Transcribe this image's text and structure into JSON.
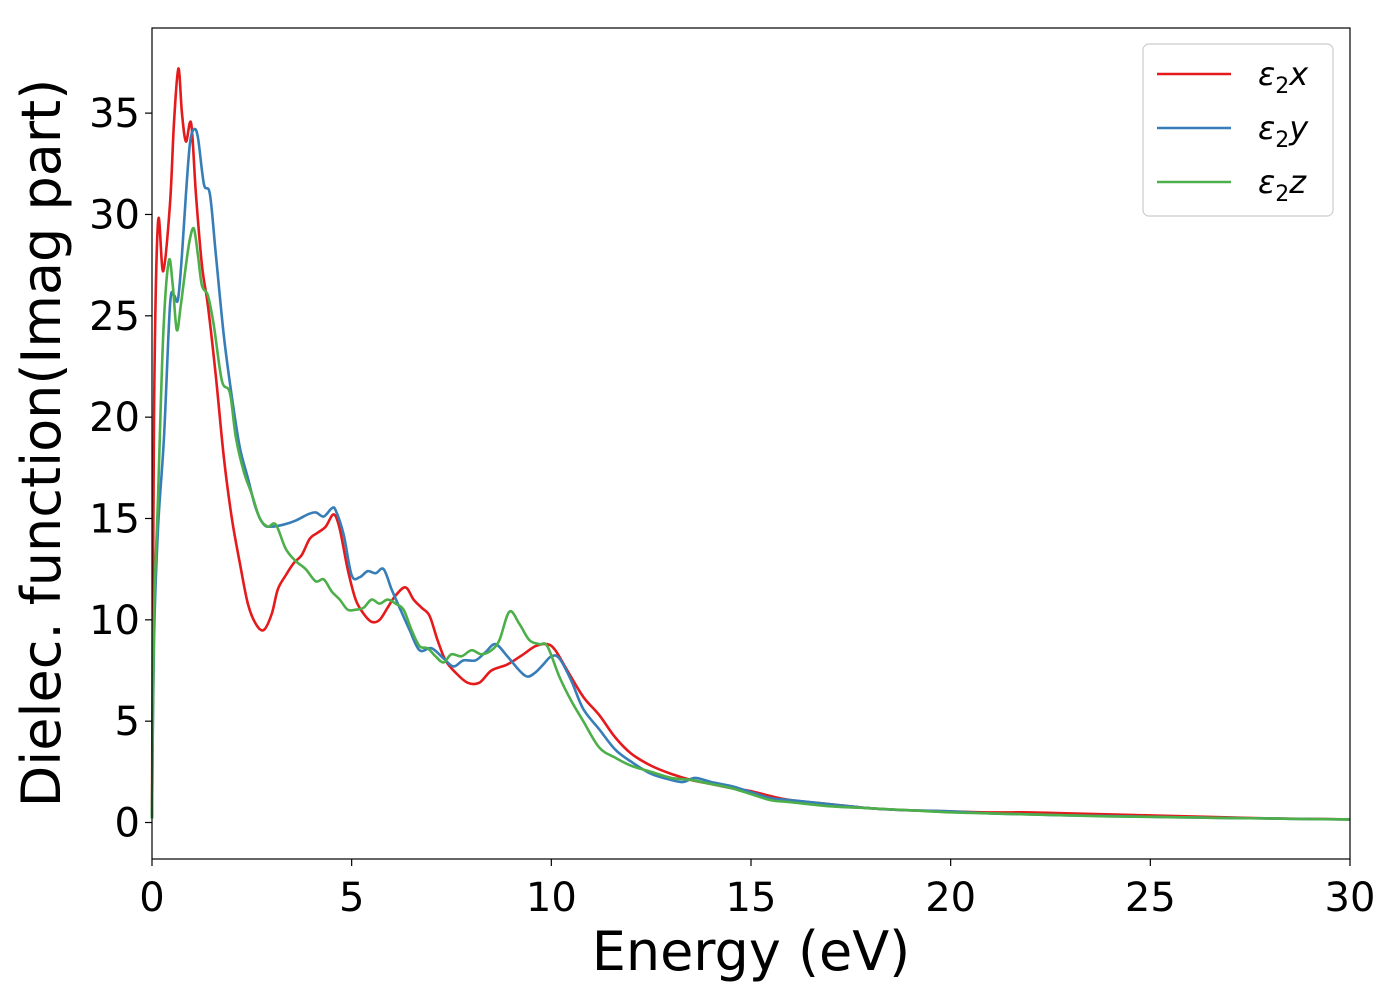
{
  "chart_data": {
    "type": "line",
    "title": "",
    "xlabel": "Energy (eV)",
    "ylabel": "Dielec. function(Imag part)",
    "xlim": [
      0,
      30
    ],
    "ylim": [
      -1.8,
      39.2
    ],
    "xticks": [
      0,
      5,
      10,
      15,
      20,
      25,
      30
    ],
    "yticks": [
      0,
      5,
      10,
      15,
      20,
      25,
      30,
      35
    ],
    "grid": false,
    "legend_position": "top-right",
    "series": [
      {
        "name": "ε₂x",
        "legend_main": "ε",
        "legend_sub": "2",
        "legend_tail": "x",
        "color": "#e41a1c",
        "x": [
          0,
          0.05,
          0.15,
          0.28,
          0.45,
          0.55,
          0.66,
          0.75,
          0.85,
          0.98,
          1.1,
          1.25,
          1.4,
          1.6,
          1.8,
          2.0,
          2.2,
          2.4,
          2.6,
          2.8,
          3.0,
          3.15,
          3.35,
          3.55,
          3.75,
          3.95,
          4.15,
          4.35,
          4.55,
          4.7,
          4.9,
          5.1,
          5.3,
          5.5,
          5.7,
          5.9,
          6.1,
          6.35,
          6.55,
          6.75,
          6.95,
          7.15,
          7.35,
          7.6,
          7.9,
          8.2,
          8.5,
          8.9,
          9.3,
          9.6,
          9.9,
          10.1,
          10.4,
          10.8,
          11.2,
          11.6,
          12.0,
          12.5,
          13.0,
          13.5,
          14.0,
          14.5,
          15.0,
          15.5,
          16.0,
          17.0,
          18.0,
          19.0,
          20.0,
          21.0,
          22.0,
          23.0,
          24.0,
          25.0,
          26.0,
          27.0,
          28.0,
          29.0,
          30.0
        ],
        "values": [
          0.3,
          20,
          29.6,
          27.2,
          30.5,
          34.5,
          37.2,
          35.0,
          33.6,
          34.5,
          31.0,
          27.5,
          25.5,
          22.0,
          18.0,
          15.0,
          12.8,
          10.8,
          9.8,
          9.5,
          10.3,
          11.5,
          12.2,
          12.8,
          13.2,
          14.0,
          14.3,
          14.6,
          15.2,
          14.5,
          12.5,
          11.0,
          10.3,
          9.9,
          10.0,
          10.6,
          11.2,
          11.6,
          11.0,
          10.6,
          10.2,
          9.0,
          8.0,
          7.4,
          6.9,
          6.9,
          7.5,
          7.8,
          8.3,
          8.7,
          8.8,
          8.5,
          7.5,
          6.2,
          5.3,
          4.2,
          3.4,
          2.8,
          2.4,
          2.1,
          1.9,
          1.7,
          1.55,
          1.3,
          1.1,
          0.9,
          0.7,
          0.6,
          0.55,
          0.5,
          0.5,
          0.45,
          0.4,
          0.35,
          0.3,
          0.25,
          0.2,
          0.18,
          0.15
        ]
      },
      {
        "name": "ε₂y",
        "legend_main": "ε",
        "legend_sub": "2",
        "legend_tail": "y",
        "color": "#377eb8",
        "x": [
          0,
          0.05,
          0.15,
          0.3,
          0.45,
          0.55,
          0.65,
          0.75,
          0.85,
          0.95,
          1.05,
          1.15,
          1.3,
          1.45,
          1.6,
          1.8,
          2.0,
          2.2,
          2.4,
          2.6,
          2.8,
          3.0,
          3.3,
          3.6,
          3.9,
          4.1,
          4.3,
          4.5,
          4.6,
          4.8,
          5.0,
          5.2,
          5.4,
          5.6,
          5.8,
          6.0,
          6.2,
          6.45,
          6.7,
          7.0,
          7.3,
          7.55,
          7.8,
          8.1,
          8.35,
          8.6,
          8.9,
          9.2,
          9.4,
          9.6,
          9.8,
          10.0,
          10.2,
          10.5,
          10.8,
          11.2,
          11.6,
          12.0,
          12.5,
          13.0,
          13.3,
          13.6,
          14.0,
          14.5,
          15.0,
          15.5,
          16.0,
          17.0,
          18.0,
          19.0,
          20.0,
          21.0,
          22.0,
          23.0,
          24.0,
          25.0,
          26.0,
          27.0,
          28.0,
          29.0,
          30.0
        ],
        "values": [
          0.2,
          9.0,
          14.5,
          19.0,
          25.5,
          26.0,
          25.8,
          28.0,
          31.0,
          33.5,
          34.2,
          33.8,
          31.5,
          31.0,
          28.0,
          24.0,
          21.0,
          18.5,
          17.0,
          15.5,
          14.7,
          14.6,
          14.7,
          14.9,
          15.2,
          15.3,
          15.1,
          15.5,
          15.4,
          14.2,
          12.2,
          12.1,
          12.4,
          12.3,
          12.5,
          11.5,
          10.6,
          9.5,
          8.5,
          8.6,
          8.1,
          7.7,
          8.0,
          8.0,
          8.4,
          8.8,
          8.2,
          7.5,
          7.2,
          7.4,
          7.8,
          8.2,
          8.1,
          7.0,
          5.6,
          4.6,
          3.6,
          3.0,
          2.4,
          2.1,
          2.0,
          2.2,
          2.0,
          1.8,
          1.5,
          1.2,
          1.1,
          0.9,
          0.7,
          0.6,
          0.55,
          0.45,
          0.4,
          0.35,
          0.32,
          0.28,
          0.25,
          0.22,
          0.2,
          0.17,
          0.15
        ]
      },
      {
        "name": "ε₂z",
        "legend_main": "ε",
        "legend_sub": "2",
        "legend_tail": "z",
        "color": "#4daf4a",
        "x": [
          0,
          0.05,
          0.15,
          0.28,
          0.42,
          0.52,
          0.62,
          0.72,
          0.85,
          0.95,
          1.05,
          1.15,
          1.25,
          1.4,
          1.55,
          1.75,
          1.95,
          2.1,
          2.3,
          2.5,
          2.7,
          2.9,
          3.1,
          3.35,
          3.6,
          3.85,
          4.1,
          4.3,
          4.5,
          4.7,
          4.9,
          5.1,
          5.3,
          5.5,
          5.7,
          5.9,
          6.1,
          6.3,
          6.5,
          6.7,
          6.9,
          7.1,
          7.3,
          7.5,
          7.75,
          8.0,
          8.25,
          8.5,
          8.7,
          8.95,
          9.2,
          9.45,
          9.7,
          9.9,
          10.2,
          10.5,
          10.8,
          11.2,
          11.6,
          12.0,
          12.5,
          13.0,
          13.5,
          14.0,
          14.5,
          15.0,
          15.5,
          16.0,
          17.0,
          18.0,
          19.0,
          20.0,
          21.0,
          22.0,
          23.0,
          24.0,
          25.0,
          26.0,
          27.0,
          28.0,
          29.0,
          30.0
        ],
        "values": [
          0.2,
          10.0,
          16.0,
          24.0,
          27.7,
          26.5,
          24.3,
          25.5,
          27.5,
          28.8,
          29.3,
          28.0,
          26.5,
          26.0,
          24.5,
          21.8,
          21.2,
          19.0,
          17.3,
          16.2,
          15.0,
          14.6,
          14.7,
          13.5,
          12.9,
          12.5,
          11.9,
          12.0,
          11.4,
          11.0,
          10.5,
          10.5,
          10.6,
          11.0,
          10.8,
          11.0,
          10.8,
          10.5,
          9.5,
          8.7,
          8.6,
          8.2,
          7.9,
          8.3,
          8.2,
          8.5,
          8.3,
          8.5,
          9.0,
          10.4,
          9.8,
          9.0,
          8.8,
          8.7,
          7.2,
          6.0,
          5.0,
          3.7,
          3.2,
          2.8,
          2.5,
          2.2,
          2.1,
          1.9,
          1.7,
          1.4,
          1.1,
          1.0,
          0.8,
          0.7,
          0.6,
          0.5,
          0.45,
          0.4,
          0.35,
          0.3,
          0.28,
          0.25,
          0.22,
          0.2,
          0.17,
          0.15
        ]
      }
    ]
  }
}
